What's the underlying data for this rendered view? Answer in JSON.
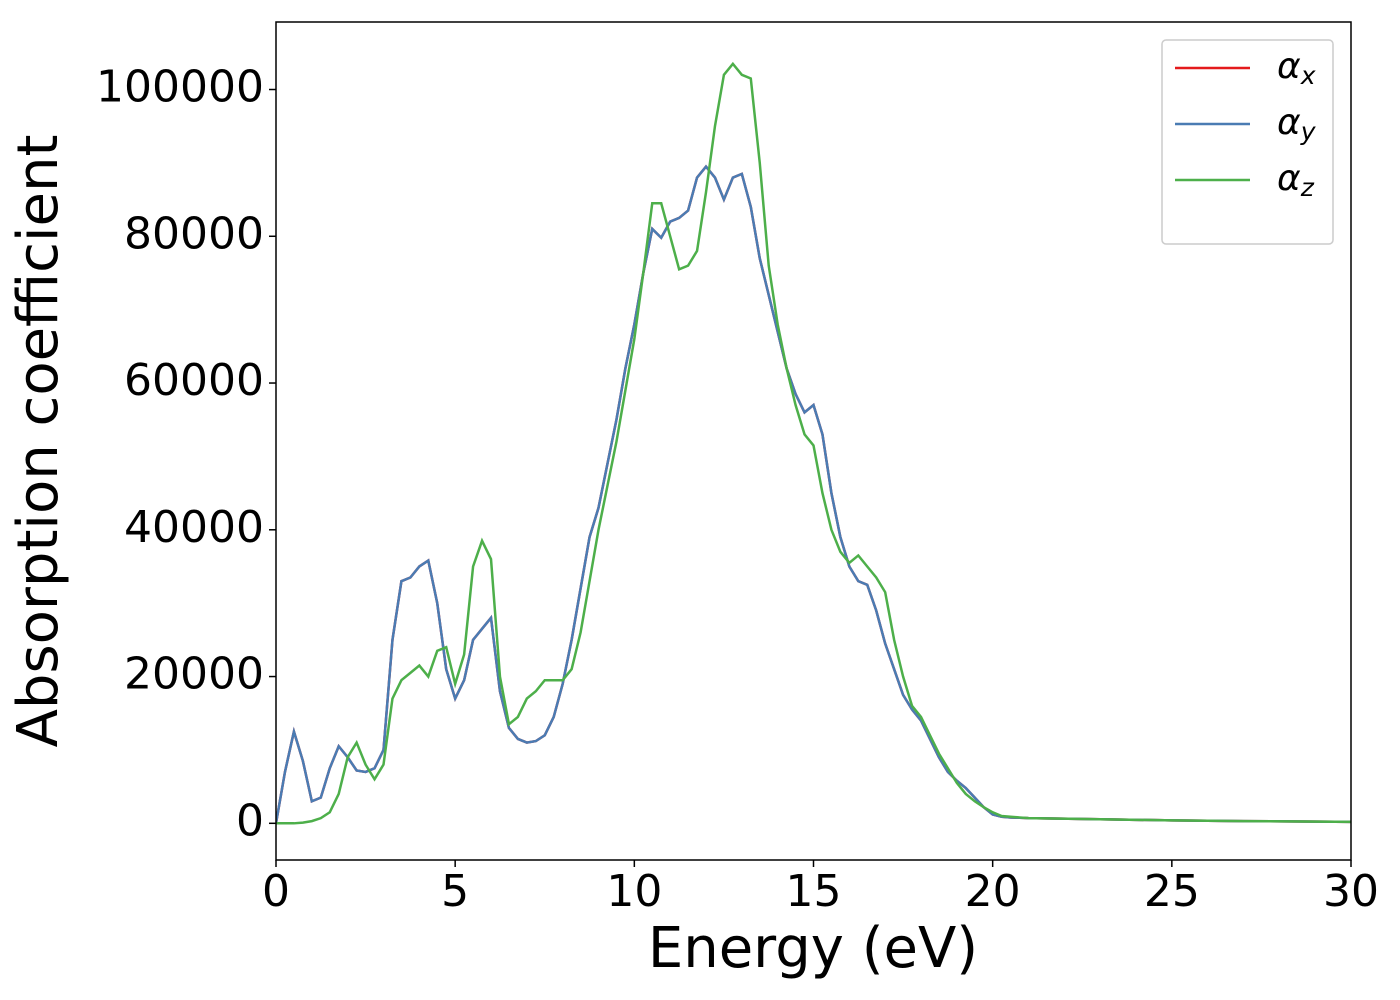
{
  "chart_data": {
    "type": "line",
    "xlabel": "Energy (eV)",
    "ylabel": "Absorption coefficient",
    "x": [
      0,
      0.25,
      0.5,
      0.75,
      1,
      1.25,
      1.5,
      1.75,
      2,
      2.25,
      2.5,
      2.75,
      3,
      3.25,
      3.5,
      3.75,
      4,
      4.25,
      4.5,
      4.75,
      5,
      5.25,
      5.5,
      5.75,
      6,
      6.25,
      6.5,
      6.75,
      7,
      7.25,
      7.5,
      7.75,
      8,
      8.25,
      8.5,
      8.75,
      9,
      9.25,
      9.5,
      9.75,
      10,
      10.25,
      10.5,
      10.75,
      11,
      11.25,
      11.5,
      11.75,
      12,
      12.25,
      12.5,
      12.75,
      13,
      13.25,
      13.5,
      13.75,
      14,
      14.25,
      14.5,
      14.75,
      15,
      15.25,
      15.5,
      15.75,
      16,
      16.25,
      16.5,
      16.75,
      17,
      17.25,
      17.5,
      17.75,
      18,
      18.25,
      18.5,
      18.75,
      19,
      19.25,
      19.5,
      19.75,
      20,
      20.25,
      20.5,
      20.75,
      21,
      23,
      25,
      27,
      30
    ],
    "series": [
      {
        "name": "αx",
        "color": "#e41a1c",
        "values": [
          0,
          7000,
          12500,
          8500,
          3000,
          3500,
          7500,
          10500,
          9000,
          7200,
          7000,
          7500,
          10000,
          25000,
          33000,
          33500,
          35000,
          35800,
          30000,
          21000,
          17000,
          19500,
          25000,
          26500,
          28000,
          18000,
          13000,
          11500,
          11000,
          11200,
          12000,
          14500,
          19000,
          25000,
          32000,
          39000,
          43000,
          49000,
          55000,
          62000,
          68000,
          75000,
          81000,
          79800,
          82000,
          82500,
          83500,
          88000,
          89500,
          88000,
          85000,
          88000,
          88500,
          84000,
          77000,
          72000,
          67000,
          62000,
          58500,
          56000,
          57000,
          53000,
          45000,
          39000,
          35000,
          33000,
          32500,
          29000,
          24500,
          21000,
          17500,
          15500,
          14000,
          11500,
          9000,
          7000,
          5800,
          4800,
          3500,
          2200,
          1200,
          900,
          800,
          750,
          700,
          550,
          400,
          300,
          200
        ]
      },
      {
        "name": "αy",
        "color": "#4a7cb3",
        "values": [
          0,
          7000,
          12500,
          8500,
          3000,
          3500,
          7500,
          10500,
          9000,
          7200,
          7000,
          7500,
          10000,
          25000,
          33000,
          33500,
          35000,
          35800,
          30000,
          21000,
          17000,
          19500,
          25000,
          26500,
          28000,
          18000,
          13000,
          11500,
          11000,
          11200,
          12000,
          14500,
          19000,
          25000,
          32000,
          39000,
          43000,
          49000,
          55000,
          62000,
          68000,
          75000,
          81000,
          79800,
          82000,
          82500,
          83500,
          88000,
          89500,
          88000,
          85000,
          88000,
          88500,
          84000,
          77000,
          72000,
          67000,
          62000,
          58500,
          56000,
          57000,
          53000,
          45000,
          39000,
          35000,
          33000,
          32500,
          29000,
          24500,
          21000,
          17500,
          15500,
          14000,
          11500,
          9000,
          7000,
          5800,
          4800,
          3500,
          2200,
          1200,
          900,
          800,
          750,
          700,
          550,
          400,
          300,
          200
        ]
      },
      {
        "name": "αz",
        "color": "#4daf4a",
        "values": [
          0,
          0,
          0,
          100,
          300,
          700,
          1500,
          4000,
          9000,
          11000,
          8000,
          6000,
          8000,
          17000,
          19500,
          20500,
          21500,
          20000,
          23500,
          24000,
          19000,
          23000,
          35000,
          38500,
          36000,
          20000,
          13500,
          14500,
          17000,
          18000,
          19500,
          19500,
          19500,
          21000,
          26000,
          33000,
          40000,
          46000,
          52000,
          59000,
          66000,
          75000,
          84500,
          84500,
          80000,
          75500,
          76000,
          78000,
          86000,
          95000,
          102000,
          103500,
          102000,
          101500,
          90000,
          76000,
          68000,
          62000,
          57000,
          53000,
          51500,
          45000,
          40000,
          37000,
          35500,
          36500,
          35000,
          33500,
          31500,
          25000,
          20000,
          16000,
          14500,
          12000,
          9500,
          7500,
          5500,
          4000,
          3000,
          2200,
          1500,
          1000,
          900,
          800,
          700,
          550,
          400,
          300,
          200
        ]
      }
    ],
    "xlim": [
      0,
      30
    ],
    "xticks": [
      0,
      5,
      10,
      15,
      20,
      25,
      30
    ],
    "ylim": [
      -5000,
      109200
    ],
    "yticks": [
      0,
      20000,
      40000,
      60000,
      80000,
      100000
    ],
    "legend": "upper right",
    "grid": false
  }
}
